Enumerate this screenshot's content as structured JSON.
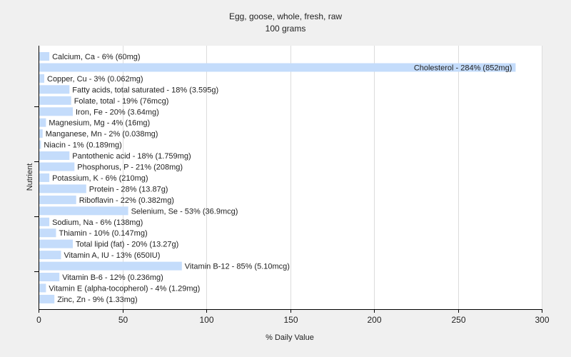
{
  "chart_data": {
    "type": "bar",
    "orientation": "horizontal",
    "title": "Egg, goose, whole, fresh, raw",
    "subtitle": "100 grams",
    "xlabel": "% Daily Value",
    "ylabel": "Nutrient",
    "xlim": [
      0,
      300
    ],
    "xticks": [
      0,
      50,
      100,
      150,
      200,
      250,
      300
    ],
    "grid": true,
    "bar_color": "#c4dcfb",
    "categories": [
      "Calcium, Ca",
      "Cholesterol",
      "Copper, Cu",
      "Fatty acids, total saturated",
      "Folate, total",
      "Iron, Fe",
      "Magnesium, Mg",
      "Manganese, Mn",
      "Niacin",
      "Pantothenic acid",
      "Phosphorus, P",
      "Potassium, K",
      "Protein",
      "Riboflavin",
      "Selenium, Se",
      "Sodium, Na",
      "Thiamin",
      "Total lipid (fat)",
      "Vitamin A, IU",
      "Vitamin B-12",
      "Vitamin B-6",
      "Vitamin E (alpha-tocopherol)",
      "Zinc, Zn"
    ],
    "values": [
      6,
      284,
      3,
      18,
      19,
      20,
      4,
      2,
      1,
      18,
      21,
      6,
      28,
      22,
      53,
      6,
      10,
      20,
      13,
      85,
      12,
      4,
      9
    ],
    "labels": [
      "Calcium, Ca - 6% (60mg)",
      "Cholesterol - 284% (852mg)",
      "Copper, Cu - 3% (0.062mg)",
      "Fatty acids, total saturated - 18% (3.595g)",
      "Folate, total - 19% (76mcg)",
      "Iron, Fe - 20% (3.64mg)",
      "Magnesium, Mg - 4% (16mg)",
      "Manganese, Mn - 2% (0.038mg)",
      "Niacin - 1% (0.189mg)",
      "Pantothenic acid - 18% (1.759mg)",
      "Phosphorus, P - 21% (208mg)",
      "Potassium, K - 6% (210mg)",
      "Protein - 28% (13.87g)",
      "Riboflavin - 22% (0.382mg)",
      "Selenium, Se - 53% (36.9mcg)",
      "Sodium, Na - 6% (138mg)",
      "Thiamin - 10% (0.147mg)",
      "Total lipid (fat) - 20% (13.27g)",
      "Vitamin A, IU - 13% (650IU)",
      "Vitamin B-12 - 85% (5.10mcg)",
      "Vitamin B-6 - 12% (0.236mg)",
      "Vitamin E (alpha-tocopherol) - 4% (1.29mg)",
      "Zinc, Zn - 9% (1.33mg)"
    ]
  }
}
